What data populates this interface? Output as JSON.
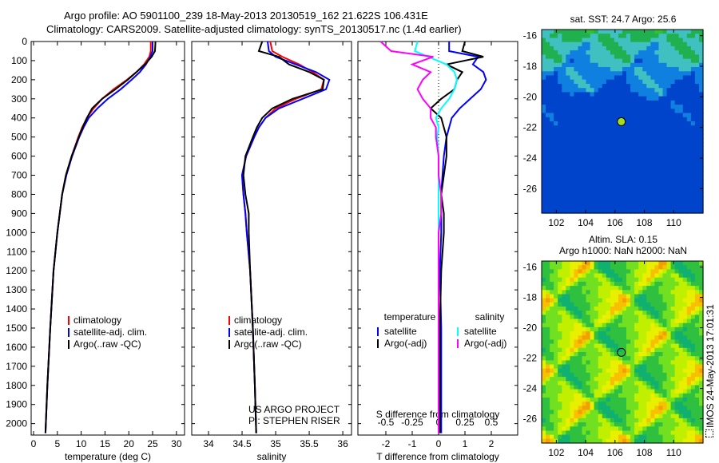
{
  "title_line1": "Argo profile: AO 5901100_239 18-May-2013 20130519_162 21.622S 106.431E",
  "title_line2": "Climatology: CARS2009. Satellite-adjusted climatology: synTS_20130517.nc (1.4d earlier)",
  "timestamp": "IMOS 24-May-2013 17:01:31",
  "colors": {
    "climatology": "#ff0000",
    "satellite": "#0000ff",
    "argo": "#000000",
    "sal_satellite": "#00ffff",
    "sal_argo": "#ff00ff"
  },
  "chart_data": [
    {
      "type": "line",
      "id": "temperature",
      "xlabel": "temperature (deg C)",
      "ylabel": "depth",
      "xlim": [
        -0.5,
        31.7
      ],
      "ylim": [
        0,
        2060
      ],
      "xticks": [
        0,
        5,
        10,
        15,
        20,
        25,
        30
      ],
      "yticks": [
        0,
        100,
        200,
        300,
        400,
        500,
        600,
        700,
        800,
        900,
        1000,
        1100,
        1200,
        1300,
        1400,
        1500,
        1600,
        1700,
        1800,
        1900,
        2000
      ],
      "legend": [
        "climatology",
        "satellite-adj. clim.",
        "Argo(..raw -QC)"
      ],
      "depth": [
        0,
        50,
        80,
        120,
        160,
        200,
        250,
        300,
        350,
        400,
        450,
        500,
        600,
        700,
        800,
        1000,
        1200,
        1500,
        1800,
        2050
      ],
      "series": [
        {
          "name": "climatology",
          "color": "#ff0000",
          "values": [
            24.6,
            24.6,
            24.3,
            23.2,
            21.6,
            19.6,
            16.8,
            14.4,
            12.6,
            11.2,
            10.2,
            9.4,
            8.0,
            6.8,
            6.0,
            5.0,
            4.2,
            3.5,
            2.9,
            2.5
          ]
        },
        {
          "name": "satellite-adj. clim.",
          "color": "#0000ff",
          "values": [
            25.0,
            25.0,
            24.5,
            23.6,
            22.3,
            20.6,
            18.3,
            15.6,
            13.4,
            11.6,
            10.5,
            9.6,
            8.1,
            6.9,
            6.0,
            5.0,
            4.2,
            3.5,
            2.9,
            2.5
          ]
        },
        {
          "name": "Argo(..raw -QC)",
          "color": "#000000",
          "values": [
            25.6,
            25.5,
            24.8,
            23.4,
            21.6,
            19.8,
            17.2,
            14.4,
            12.3,
            11.2,
            10.3,
            9.5,
            8.0,
            6.8,
            6.0,
            5.0,
            4.2,
            3.5,
            2.9,
            2.5
          ]
        }
      ]
    },
    {
      "type": "line",
      "id": "salinity",
      "xlabel": "salinity",
      "xlim": [
        33.75,
        36.13
      ],
      "ylim": [
        0,
        2060
      ],
      "xticks": [
        34,
        34.5,
        35,
        35.5,
        36
      ],
      "legend": [
        "climatology",
        "satellite-adj. clim.",
        "Argo(..raw -QC)"
      ],
      "annotation": [
        "US ARGO PROJECT",
        "PI: STEPHEN RISER"
      ],
      "depth": [
        0,
        50,
        80,
        120,
        160,
        200,
        250,
        300,
        350,
        400,
        450,
        500,
        600,
        700,
        800,
        900,
        1000,
        1200,
        1500,
        1800,
        2050
      ],
      "series": [
        {
          "name": "climatology",
          "color": "#ff0000",
          "values": [
            34.92,
            34.95,
            35.1,
            35.35,
            35.55,
            35.72,
            35.68,
            35.3,
            35.0,
            34.85,
            34.75,
            34.68,
            34.56,
            34.5,
            34.52,
            34.55,
            34.57,
            34.62,
            34.66,
            34.69,
            34.71
          ]
        },
        {
          "name": "satellite-adj. clim.",
          "color": "#0000ff",
          "values": [
            34.88,
            34.9,
            35.0,
            35.3,
            35.6,
            35.8,
            35.75,
            35.4,
            35.05,
            34.85,
            34.75,
            34.68,
            34.56,
            34.5,
            34.52,
            34.55,
            34.57,
            34.62,
            34.66,
            34.69,
            34.71
          ]
        },
        {
          "name": "Argo(..raw -QC)",
          "color": "#000000",
          "values": [
            34.8,
            34.75,
            35.05,
            35.2,
            35.5,
            35.72,
            35.7,
            35.25,
            34.95,
            34.8,
            34.72,
            34.66,
            34.55,
            34.52,
            34.55,
            34.6,
            34.6,
            34.62,
            34.66,
            34.69,
            34.71
          ]
        }
      ]
    },
    {
      "type": "line",
      "id": "difference",
      "xlabel": "T difference from climatology",
      "x2label": "S difference from climatology",
      "xlim": [
        -3.06,
        3.0
      ],
      "x2lim": [
        -0.765,
        0.75
      ],
      "ylim": [
        0,
        2060
      ],
      "xticks": [
        -2,
        -1,
        0,
        1,
        2
      ],
      "x2ticks": [
        "-0.5",
        "-0.25",
        "0",
        "0.25",
        "0.5"
      ],
      "legend": {
        "temperature": [
          "satellite",
          "Argo(-adj)"
        ],
        "salinity": [
          "satellite",
          "Argo(-adj)"
        ]
      },
      "depth": [
        0,
        50,
        80,
        120,
        160,
        200,
        250,
        300,
        350,
        400,
        450,
        500,
        600,
        700,
        800,
        900,
        1000,
        1200,
        1500,
        2050
      ],
      "series": [
        {
          "name": "temperature satellite",
          "color": "#0000ff",
          "values": [
            0.4,
            0.4,
            1.5,
            1.3,
            1.7,
            1.8,
            1.6,
            1.2,
            0.8,
            0.5,
            0.4,
            0.3,
            0.2,
            0.15,
            0.1,
            0.1,
            0.1,
            0.05,
            0.1,
            0.1
          ]
        },
        {
          "name": "temperature Argo(-adj)",
          "color": "#000000",
          "values": [
            1.0,
            0.9,
            1.7,
            0.3,
            0.9,
            0.7,
            0.6,
            0.1,
            -0.3,
            0.1,
            0.2,
            0.3,
            0.3,
            0.2,
            0.1,
            0.2,
            0.2,
            0.1,
            0.05,
            0.05
          ]
        },
        {
          "name": "salinity satellite",
          "color": "#00ffff",
          "values": [
            -0.8,
            -0.9,
            -0.4,
            0.3,
            0.6,
            0.7,
            0.6,
            0.4,
            0.1,
            -0.1,
            0.0,
            -0.05,
            0.0,
            0.0,
            0.0,
            0.0,
            0.0,
            0.0,
            0.0,
            0.0
          ]
        },
        {
          "name": "salinity Argo(-adj)",
          "color": "#ff00ff",
          "values": [
            -2.2,
            -1.8,
            -0.2,
            -1.0,
            -0.3,
            -0.6,
            -0.8,
            -0.6,
            -0.3,
            -0.3,
            -0.1,
            -0.1,
            0.0,
            0.0,
            0.1,
            0.1,
            0.0,
            0.0,
            0.0,
            0.0
          ]
        }
      ]
    },
    {
      "type": "heatmap",
      "id": "sst-map",
      "title": "sat. SST: 24.7 Argo: 25.6",
      "xticks": [
        102,
        104,
        106,
        108,
        110
      ],
      "yticks": [
        -16,
        -18,
        -20,
        -22,
        -24,
        -26
      ],
      "xlim": [
        101,
        112
      ],
      "ylim": [
        -27.6,
        -15.6
      ],
      "float": {
        "lon": 106.431,
        "lat": -21.622
      }
    },
    {
      "type": "heatmap",
      "id": "sla-map",
      "title": [
        "Altim. SLA: 0.15",
        "Argo h1000: NaN h2000: NaN"
      ],
      "xticks": [
        102,
        104,
        106,
        108,
        110
      ],
      "yticks": [
        -16,
        -18,
        -20,
        -22,
        -24,
        -26
      ],
      "xlim": [
        101,
        112
      ],
      "ylim": [
        -27.6,
        -15.6
      ],
      "float": {
        "lon": 106.431,
        "lat": -21.622
      }
    }
  ]
}
